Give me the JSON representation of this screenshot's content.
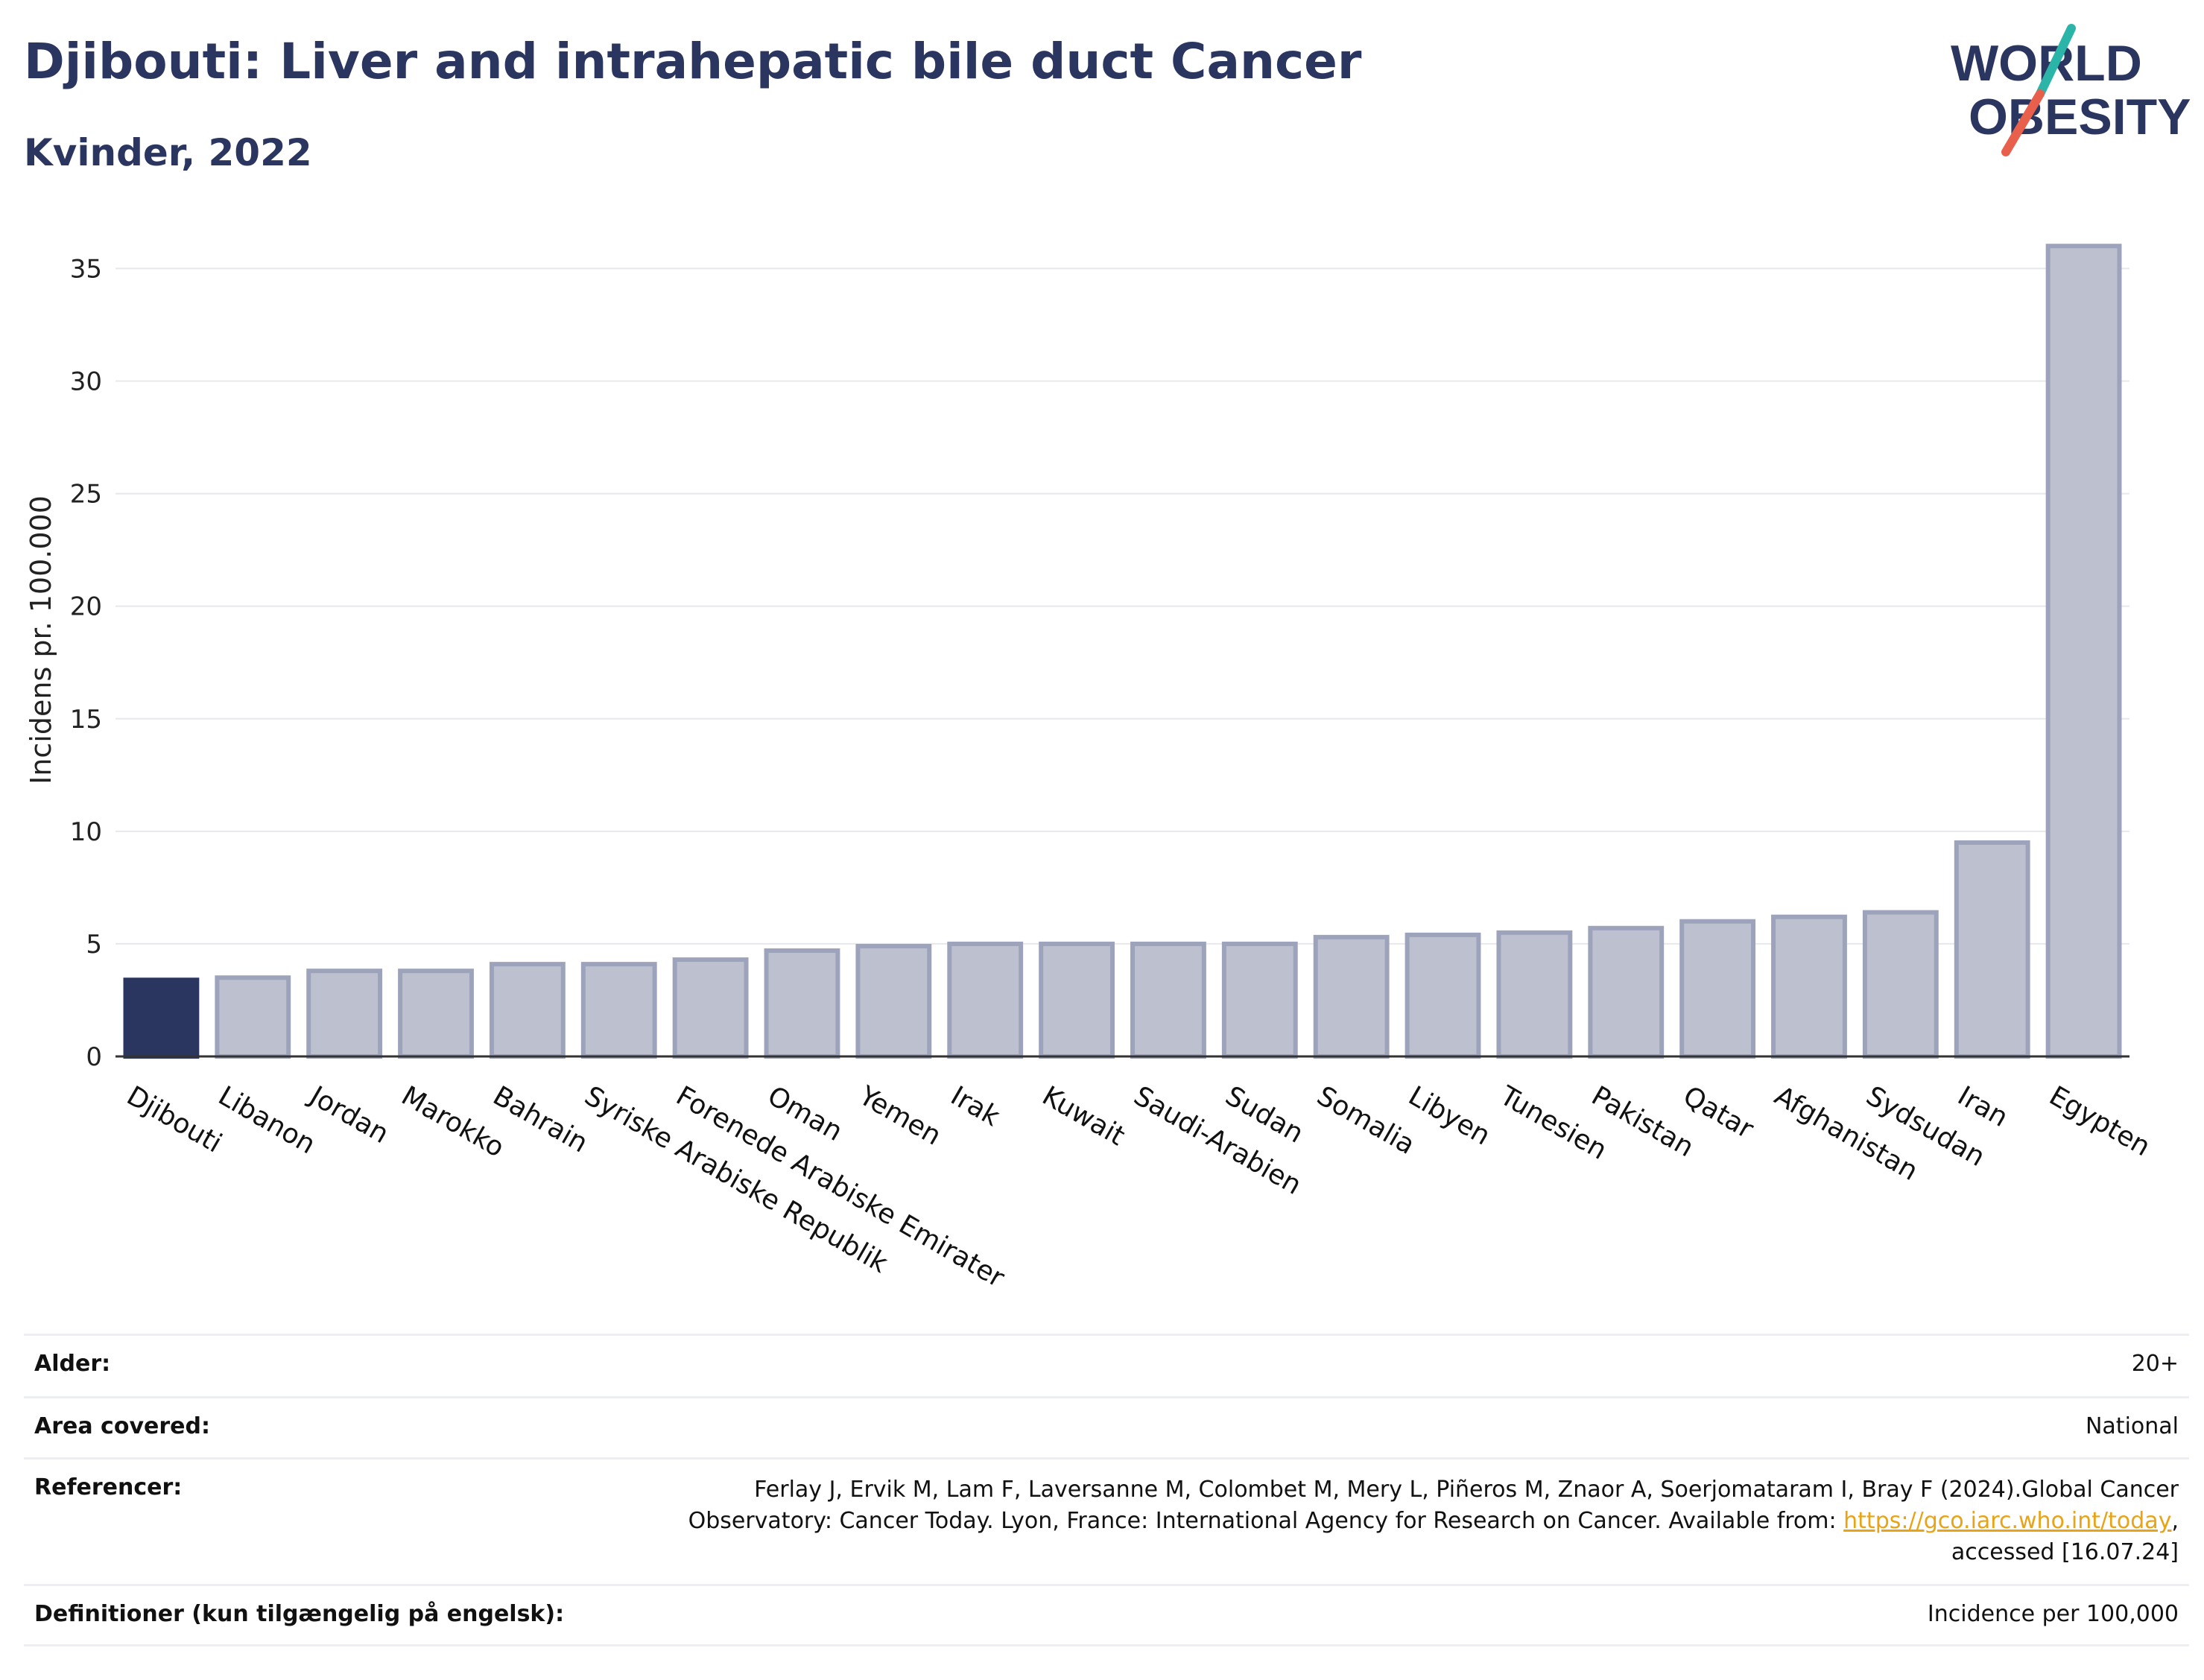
{
  "title": "Djibouti: Liver and intrahepatic bile duct Cancer",
  "subtitle": "Kvinder, 2022",
  "logo": {
    "line1": "WORLD",
    "line2": "OBESITY",
    "accent1": "#2ab5a8",
    "accent2": "#e8604c",
    "color": "#2b3660"
  },
  "chart_data": {
    "type": "bar",
    "ylabel": "Incidens pr. 100.000",
    "xlabel": "",
    "ylim": [
      0,
      37
    ],
    "yticks": [
      0,
      5,
      10,
      15,
      20,
      25,
      30,
      35
    ],
    "grid": true,
    "highlight": "Djibouti",
    "highlight_color": "#2b3660",
    "bar_color": "#bdc0ce",
    "bar_edge": "#9ea3bc",
    "categories": [
      "Djibouti",
      "Libanon",
      "Jordan",
      "Marokko",
      "Bahrain",
      "Syriske Arabiske Republik",
      "Forenede Arabiske Emirater",
      "Oman",
      "Yemen",
      "Irak",
      "Kuwait",
      "Saudi-Arabien",
      "Sudan",
      "Somalia",
      "Libyen",
      "Tunesien",
      "Pakistan",
      "Qatar",
      "Afghanistan",
      "Sydsudan",
      "Iran",
      "Egypten"
    ],
    "values": [
      3.4,
      3.5,
      3.8,
      3.8,
      4.1,
      4.1,
      4.3,
      4.7,
      4.9,
      5.0,
      5.0,
      5.0,
      5.0,
      5.3,
      5.4,
      5.5,
      5.7,
      6.0,
      6.2,
      6.4,
      9.5,
      36.0
    ]
  },
  "info": {
    "age_label": "Alder:",
    "age_value": "20+",
    "area_label": "Area covered:",
    "area_value": "National",
    "ref_label": "Referencer:",
    "ref_line1": "Ferlay J, Ervik M, Lam F, Laversanne M, Colombet M, Mery L, Piñeros M, Znaor A, Soerjomataram I, Bray F (2024).Global Cancer",
    "ref_line2_pre": "Observatory: Cancer Today. Lyon, France: International Agency for Research on Cancer. Available from: ",
    "ref_link": "https://gco.iarc.who.int/today",
    "ref_line2_post": ",",
    "ref_line3": "accessed [16.07.24]",
    "def_label": "Definitioner (kun tilgængelig på engelsk):",
    "def_value": "Incidence per 100,000"
  }
}
